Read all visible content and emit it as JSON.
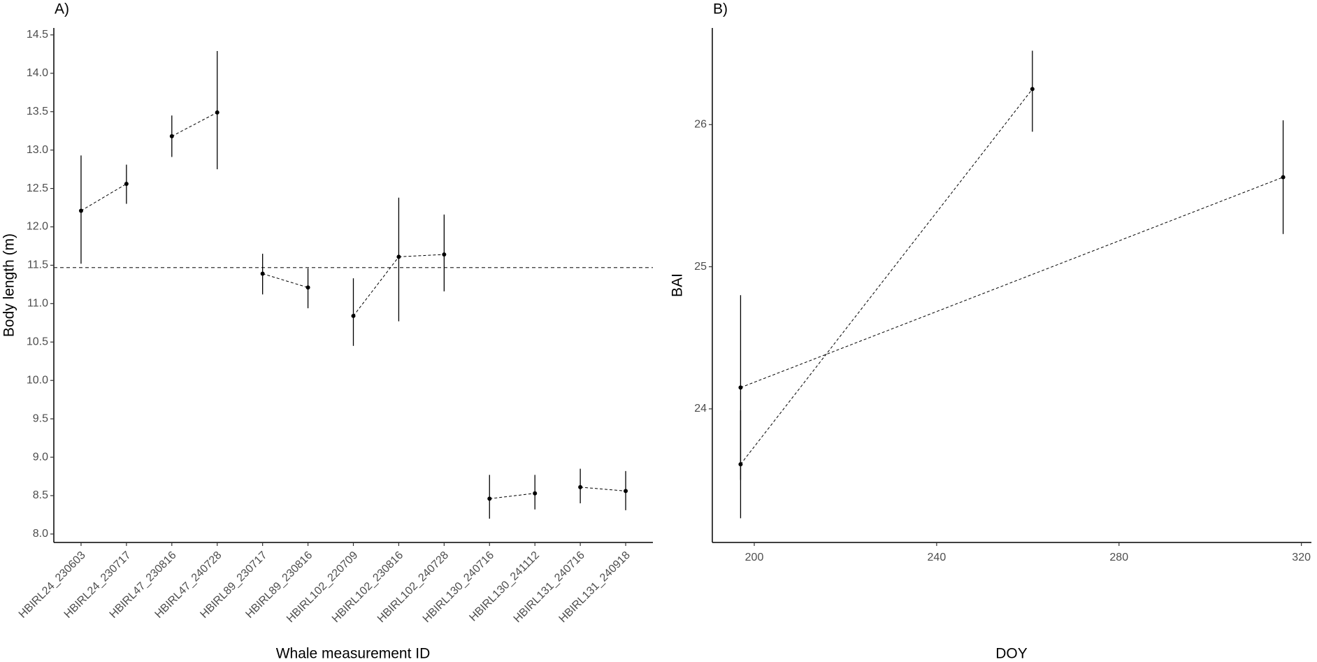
{
  "chart_data": [
    {
      "type": "errorbar",
      "panel_label": "A)",
      "xlabel": "Whale measurement ID",
      "ylabel": "Body length (m)",
      "categories": [
        "HBIRL24_230603",
        "HBIRL24_230717",
        "HBIRL47_230816",
        "HBIRL47_240728",
        "HBIRL89_230717",
        "HBIRL89_230816",
        "HBIRL102_220709",
        "HBIRL102_230816",
        "HBIRL102_240728",
        "HBIRL130_240716",
        "HBIRL130_241112",
        "HBIRL131_240716",
        "HBIRL131_240918"
      ],
      "values": [
        12.21,
        12.56,
        13.18,
        13.49,
        11.39,
        11.21,
        10.84,
        11.61,
        11.64,
        8.46,
        8.53,
        8.61,
        8.56
      ],
      "lower": [
        11.52,
        12.3,
        12.91,
        12.75,
        11.12,
        10.94,
        10.45,
        10.77,
        11.16,
        8.2,
        8.32,
        8.4,
        8.31
      ],
      "upper": [
        12.93,
        12.81,
        13.45,
        14.29,
        11.65,
        11.46,
        11.33,
        12.38,
        12.16,
        8.77,
        8.77,
        8.85,
        8.82
      ],
      "reference_line": 11.47,
      "ylim": [
        7.89,
        14.59
      ],
      "yticks": [
        {
          "value": 8,
          "label": "8.0"
        },
        8.5,
        {
          "value": 9,
          "label": "9.0"
        },
        9.5,
        {
          "value": 10,
          "label": "10.0"
        },
        10.5,
        {
          "value": 11,
          "label": "11.0"
        },
        11.5,
        {
          "value": 12,
          "label": "12.0"
        },
        12.5,
        {
          "value": 13,
          "label": "13.0"
        },
        13.5,
        {
          "value": 14,
          "label": "14.0"
        },
        14.5
      ],
      "color": "#000000",
      "grid": false
    },
    {
      "type": "scatter_errorbar",
      "panel_label": "B)",
      "xlabel": "DOY",
      "ylabel": "BAI",
      "series": [
        {
          "x": [
            197,
            316
          ],
          "values": [
            24.15,
            25.63
          ],
          "lower": [
            23.5,
            25.23
          ],
          "upper": [
            24.8,
            26.03
          ]
        },
        {
          "x": [
            197,
            261
          ],
          "values": [
            23.61,
            26.25
          ],
          "lower": [
            23.23,
            25.95
          ],
          "upper": [
            23.99,
            26.52
          ]
        }
      ],
      "xlim": [
        190.8,
        322.2
      ],
      "xticks": [
        200,
        240,
        280,
        320
      ],
      "ylim": [
        23.06,
        26.68
      ],
      "yticks": [
        24,
        25,
        26
      ],
      "color": "#000000",
      "grid": false
    }
  ]
}
